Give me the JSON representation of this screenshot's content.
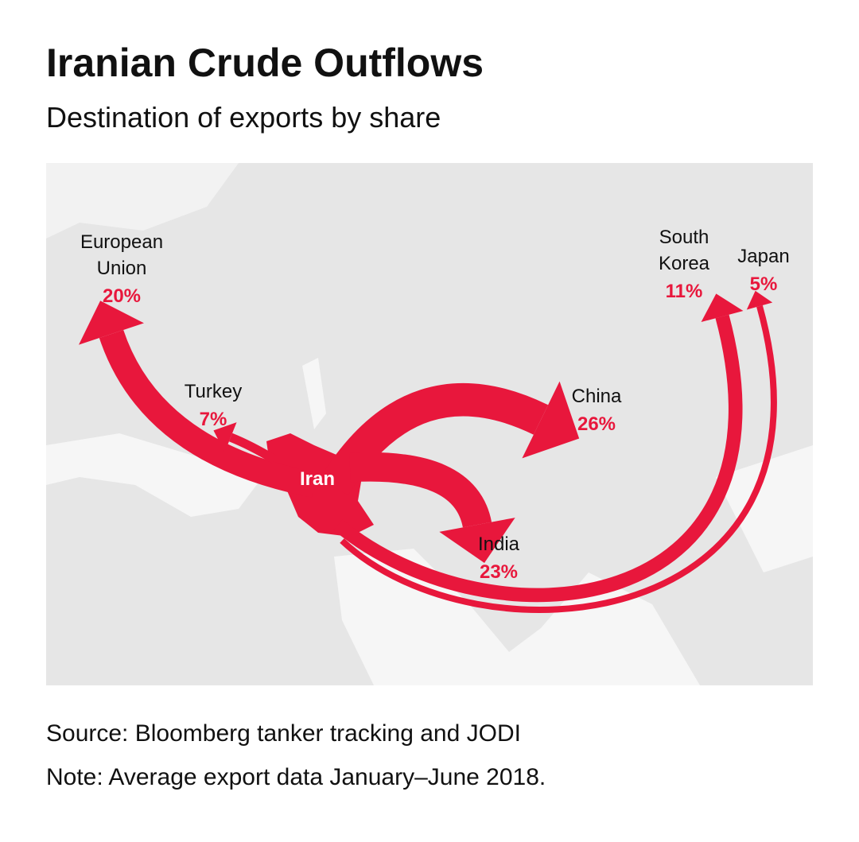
{
  "header": {
    "title": "Iranian Crude Outflows",
    "subtitle": "Destination of exports by share"
  },
  "map": {
    "origin": "Iran",
    "color": "#e8173c",
    "destinations": [
      {
        "name_lines": [
          "European",
          "Union"
        ],
        "share": {
          "value": 20,
          "label": "20%"
        }
      },
      {
        "name_lines": [
          "Turkey"
        ],
        "share": {
          "value": 7,
          "label": "7%"
        }
      },
      {
        "name_lines": [
          "China"
        ],
        "share": {
          "value": 26,
          "label": "26%"
        }
      },
      {
        "name_lines": [
          "India"
        ],
        "share": {
          "value": 23,
          "label": "23%"
        }
      },
      {
        "name_lines": [
          "South",
          "Korea"
        ],
        "share": {
          "value": 11,
          "label": "11%"
        }
      },
      {
        "name_lines": [
          "Japan"
        ],
        "share": {
          "value": 5,
          "label": "5%"
        }
      }
    ]
  },
  "footer": {
    "source": "Source: Bloomberg tanker tracking and JODI",
    "note": "Note: Average export data January–June 2018."
  }
}
